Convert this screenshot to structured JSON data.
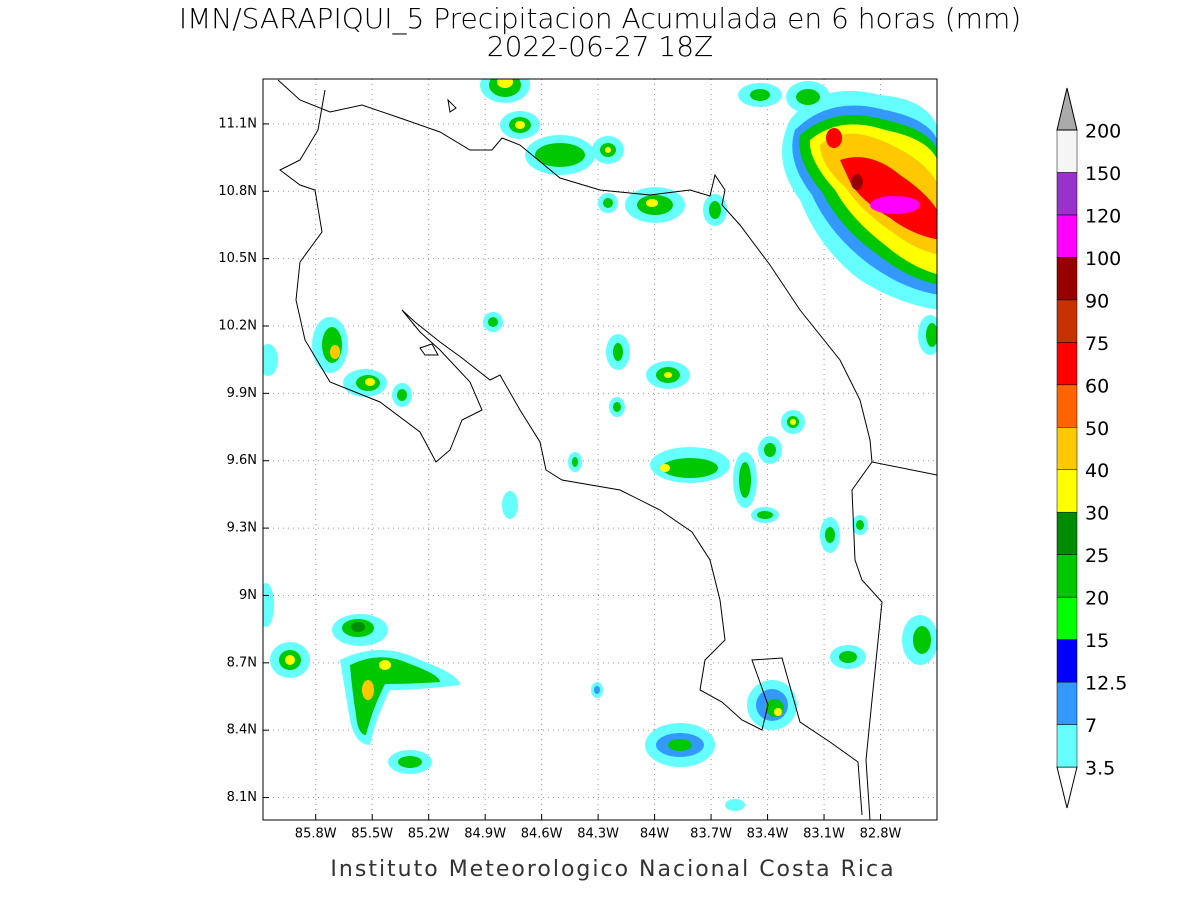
{
  "title": "IMN/SARAPIQUI_5 Precipitacion Acumulada en 6 horas (mm)",
  "subtitle": "2022-06-27 18Z",
  "footer": "Instituto Meteorologico Nacional Costa Rica",
  "map": {
    "xlim": [
      -86.08,
      -82.5
    ],
    "ylim": [
      8.0,
      11.3
    ],
    "grid": true,
    "xticks": [
      {
        "value": -85.8,
        "label": "85.8W"
      },
      {
        "value": -85.5,
        "label": "85.5W"
      },
      {
        "value": -85.2,
        "label": "85.2W"
      },
      {
        "value": -84.9,
        "label": "84.9W"
      },
      {
        "value": -84.6,
        "label": "84.6W"
      },
      {
        "value": -84.3,
        "label": "84.3W"
      },
      {
        "value": -84.0,
        "label": "84W"
      },
      {
        "value": -83.7,
        "label": "83.7W"
      },
      {
        "value": -83.4,
        "label": "83.4W"
      },
      {
        "value": -83.1,
        "label": "83.1W"
      },
      {
        "value": -82.8,
        "label": "82.8W"
      }
    ],
    "yticks": [
      {
        "value": 11.1,
        "label": "11.1N"
      },
      {
        "value": 10.8,
        "label": "10.8N"
      },
      {
        "value": 10.5,
        "label": "10.5N"
      },
      {
        "value": 10.2,
        "label": "10.2N"
      },
      {
        "value": 9.9,
        "label": "9.9N"
      },
      {
        "value": 9.6,
        "label": "9.6N"
      },
      {
        "value": 9.3,
        "label": "9.3N"
      },
      {
        "value": 9.0,
        "label": "9N"
      },
      {
        "value": 8.7,
        "label": "8.7N"
      },
      {
        "value": 8.4,
        "label": "8.4N"
      },
      {
        "value": 8.1,
        "label": "8.1N"
      }
    ]
  },
  "colorbar": {
    "levels": [
      3.5,
      7,
      12.5,
      15,
      20,
      25,
      30,
      40,
      50,
      60,
      75,
      90,
      100,
      120,
      150,
      200
    ],
    "colors": [
      "#ffffff",
      "#66ffff",
      "#3399ff",
      "#0000ff",
      "#00ff00",
      "#00c800",
      "#008c00",
      "#ffff00",
      "#ffc800",
      "#ff6400",
      "#ff0000",
      "#c83200",
      "#960000",
      "#ff00ff",
      "#9932cc",
      "#f5f5f5",
      "#aaaaaa"
    ]
  }
}
